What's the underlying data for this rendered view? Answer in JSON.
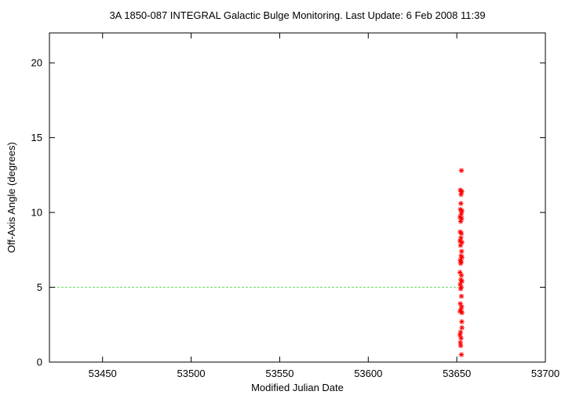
{
  "chart_data": {
    "type": "scatter",
    "title": "3A 1850-087   INTEGRAL Galactic Bulge Monitoring.  Last Update: 6 Feb 2008 11:39",
    "xlabel": "Modified Julian Date",
    "ylabel": "Off-Axis Angle (degrees)",
    "xlim": [
      53420,
      53700
    ],
    "ylim": [
      0,
      22
    ],
    "xticks": [
      53450,
      53500,
      53550,
      53600,
      53650,
      53700
    ],
    "yticks": [
      0,
      5,
      10,
      15,
      20
    ],
    "grid": false,
    "legend": "none",
    "reference_line": {
      "y": 5,
      "x_range": [
        53420,
        53651
      ],
      "style": "dashed",
      "color": "#66dd66"
    },
    "series": [
      {
        "marker": "asterisk",
        "color": "#ff0000",
        "points": [
          [
            53652.6,
            12.8
          ],
          [
            53652.0,
            11.5
          ],
          [
            53652.8,
            11.4
          ],
          [
            53652.4,
            11.2
          ],
          [
            53652.3,
            10.6
          ],
          [
            53652.0,
            10.2
          ],
          [
            53652.9,
            10.1
          ],
          [
            53652.5,
            9.9
          ],
          [
            53651.8,
            9.7
          ],
          [
            53652.7,
            9.6
          ],
          [
            53652.2,
            9.4
          ],
          [
            53651.9,
            8.7
          ],
          [
            53652.6,
            8.6
          ],
          [
            53652.3,
            8.3
          ],
          [
            53651.8,
            8.1
          ],
          [
            53652.9,
            8.0
          ],
          [
            53652.1,
            7.8
          ],
          [
            53652.7,
            7.4
          ],
          [
            53652.4,
            7.1
          ],
          [
            53652.9,
            7.0
          ],
          [
            53651.9,
            6.8
          ],
          [
            53652.5,
            6.7
          ],
          [
            53652.2,
            6.6
          ],
          [
            53651.8,
            6.0
          ],
          [
            53652.6,
            5.8
          ],
          [
            53652.3,
            5.5
          ],
          [
            53652.9,
            5.4
          ],
          [
            53651.9,
            5.2
          ],
          [
            53652.5,
            5.0
          ],
          [
            53652.2,
            4.9
          ],
          [
            53652.6,
            4.4
          ],
          [
            53652.0,
            3.9
          ],
          [
            53652.7,
            3.7
          ],
          [
            53652.3,
            3.5
          ],
          [
            53651.8,
            3.4
          ],
          [
            53652.9,
            3.3
          ],
          [
            53652.8,
            2.7
          ],
          [
            53652.9,
            2.3
          ],
          [
            53652.1,
            2.0
          ],
          [
            53651.8,
            1.8
          ],
          [
            53652.4,
            1.6
          ],
          [
            53652.0,
            1.3
          ],
          [
            53652.2,
            1.1
          ],
          [
            53652.6,
            0.5
          ]
        ]
      }
    ]
  }
}
